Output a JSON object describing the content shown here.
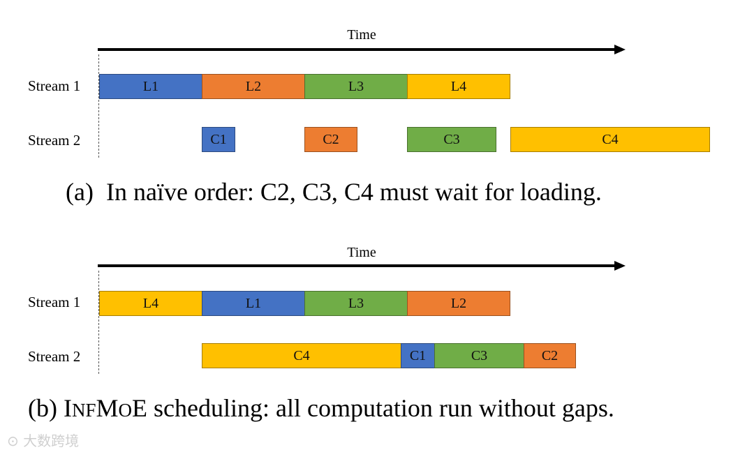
{
  "colors": {
    "blue": "#4472C4",
    "orange": "#ED7D31",
    "green": "#70AD47",
    "yellow": "#FFC000"
  },
  "panel_a": {
    "time_label": "Time",
    "stream1_label": "Stream 1",
    "stream2_label": "Stream 2",
    "stream1_blocks": [
      "L1",
      "L2",
      "L3",
      "L4"
    ],
    "stream2_blocks": [
      "C1",
      "C2",
      "C3",
      "C4"
    ],
    "caption_prefix": "(a)",
    "caption_text": "In naïve order: C2, C3, C4 must wait for loading."
  },
  "panel_b": {
    "time_label": "Time",
    "stream1_label": "Stream 1",
    "stream2_label": "Stream 2",
    "stream1_blocks": [
      "L4",
      "L1",
      "L3",
      "L2"
    ],
    "stream2_blocks": [
      "C4",
      "C1",
      "C3",
      "C2"
    ],
    "caption_prefix": "(b)",
    "caption_name_1": "I",
    "caption_name_2": "NF",
    "caption_name_3": "M",
    "caption_name_4": "O",
    "caption_name_5": "E",
    "caption_text": "scheduling: all computation run without gaps."
  },
  "watermark": "大数跨境"
}
